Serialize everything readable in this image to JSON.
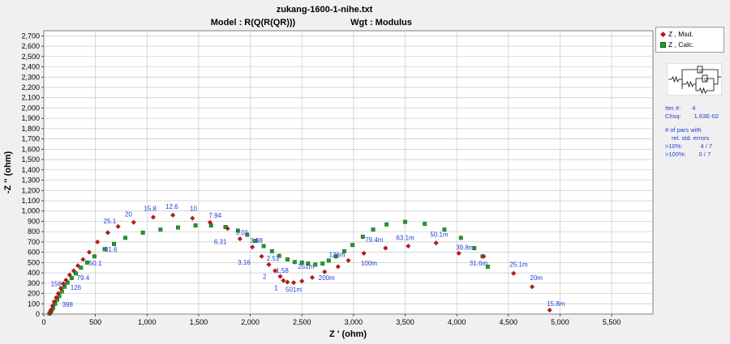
{
  "window": {
    "title": "zukang-1600-1-nihe.txt",
    "model_label": "Model : R(Q(R(QR)))",
    "weight_label": "Wgt : Modulus"
  },
  "legend": {
    "measured": "Z , Msd.",
    "calculated": "Z , Calc."
  },
  "fit_info": {
    "iter_label": "Iter #:",
    "iter_value": "4",
    "chsq_label": "Chsq:",
    "chsq_value": "1.63E-02",
    "pars_line1": "# of pars with",
    "pars_line2": "rel. std. errors",
    "gt10_label": ">10%:",
    "gt10_value": "4 / 7",
    "gt100_label": ">100%:",
    "gt100_value": "0 / 7"
  },
  "colors": {
    "measured": "#c21818",
    "calculated": "#1f9e2e",
    "freq_label": "#1f3fd8",
    "grid": "#c8c8c8"
  },
  "chart_data": {
    "type": "scatter",
    "xlabel": "Z ' (ohm)",
    "ylabel": "-Z '' (ohm)",
    "xlim": [
      0,
      5900
    ],
    "ylim": [
      0,
      2750
    ],
    "xticks": [
      0,
      500,
      1000,
      1500,
      2000,
      2500,
      3000,
      3500,
      4000,
      4500,
      5000,
      5500
    ],
    "yticks": [
      0,
      100,
      200,
      300,
      400,
      500,
      600,
      700,
      800,
      900,
      1000,
      1100,
      1200,
      1300,
      1400,
      1500,
      1600,
      1700,
      1800,
      1900,
      2000,
      2100,
      2200,
      2300,
      2400,
      2500,
      2600,
      2700
    ],
    "grid": true,
    "legend_position": "right",
    "series": [
      {
        "name": "Z , Msd.",
        "marker": "diamond",
        "points": [
          [
            60,
            10
          ],
          [
            70,
            40
          ],
          [
            85,
            80
          ],
          [
            100,
            120
          ],
          [
            120,
            160
          ],
          [
            140,
            200
          ],
          [
            165,
            250
          ],
          [
            190,
            295
          ],
          [
            215,
            330
          ],
          [
            250,
            380
          ],
          [
            290,
            420
          ],
          [
            330,
            470
          ],
          [
            380,
            530
          ],
          [
            440,
            600
          ],
          [
            520,
            700
          ],
          [
            620,
            790
          ],
          [
            720,
            850
          ],
          [
            870,
            890
          ],
          [
            1060,
            940
          ],
          [
            1250,
            960
          ],
          [
            1440,
            930
          ],
          [
            1610,
            890
          ],
          [
            1780,
            830
          ],
          [
            1900,
            730
          ],
          [
            2020,
            650
          ],
          [
            2110,
            560
          ],
          [
            2180,
            480
          ],
          [
            2240,
            420
          ],
          [
            2290,
            365
          ],
          [
            2320,
            325
          ],
          [
            2360,
            310
          ],
          [
            2420,
            305
          ],
          [
            2500,
            320
          ],
          [
            2600,
            355
          ],
          [
            2720,
            410
          ],
          [
            2850,
            460
          ],
          [
            2950,
            520
          ],
          [
            3100,
            590
          ],
          [
            3310,
            640
          ],
          [
            3530,
            660
          ],
          [
            3800,
            690
          ],
          [
            4020,
            590
          ],
          [
            4260,
            560
          ],
          [
            4550,
            395
          ],
          [
            4730,
            265
          ],
          [
            4900,
            38
          ]
        ]
      },
      {
        "name": "Z , Calc.",
        "marker": "square",
        "points": [
          [
            55,
            5
          ],
          [
            65,
            20
          ],
          [
            75,
            35
          ],
          [
            90,
            60
          ],
          [
            110,
            100
          ],
          [
            130,
            140
          ],
          [
            150,
            175
          ],
          [
            175,
            220
          ],
          [
            200,
            265
          ],
          [
            230,
            305
          ],
          [
            270,
            350
          ],
          [
            310,
            395
          ],
          [
            360,
            450
          ],
          [
            420,
            500
          ],
          [
            490,
            560
          ],
          [
            590,
            630
          ],
          [
            680,
            680
          ],
          [
            790,
            740
          ],
          [
            960,
            790
          ],
          [
            1130,
            820
          ],
          [
            1300,
            840
          ],
          [
            1470,
            860
          ],
          [
            1620,
            860
          ],
          [
            1760,
            845
          ],
          [
            1880,
            810
          ],
          [
            1970,
            770
          ],
          [
            2050,
            710
          ],
          [
            2130,
            660
          ],
          [
            2210,
            610
          ],
          [
            2280,
            565
          ],
          [
            2360,
            530
          ],
          [
            2430,
            505
          ],
          [
            2500,
            500
          ],
          [
            2560,
            490
          ],
          [
            2630,
            480
          ],
          [
            2700,
            490
          ],
          [
            2760,
            520
          ],
          [
            2830,
            560
          ],
          [
            2910,
            610
          ],
          [
            2990,
            670
          ],
          [
            3090,
            750
          ],
          [
            3190,
            820
          ],
          [
            3320,
            870
          ],
          [
            3500,
            895
          ],
          [
            3690,
            875
          ],
          [
            3880,
            820
          ],
          [
            4040,
            740
          ],
          [
            4170,
            640
          ],
          [
            4250,
            560
          ],
          [
            4300,
            460
          ]
        ]
      }
    ],
    "frequency_labels": [
      {
        "text": "158",
        "x": 120,
        "y": 270
      },
      {
        "text": "126",
        "x": 310,
        "y": 235
      },
      {
        "text": "398",
        "x": 230,
        "y": 70
      },
      {
        "text": "79.4",
        "x": 380,
        "y": 330
      },
      {
        "text": "50.1",
        "x": 500,
        "y": 470
      },
      {
        "text": "31.6",
        "x": 650,
        "y": 605
      },
      {
        "text": "25.1",
        "x": 640,
        "y": 880
      },
      {
        "text": "20",
        "x": 820,
        "y": 945
      },
      {
        "text": "15.8",
        "x": 1030,
        "y": 1000
      },
      {
        "text": "12.6",
        "x": 1240,
        "y": 1020
      },
      {
        "text": "10",
        "x": 1450,
        "y": 1000
      },
      {
        "text": "7.94",
        "x": 1660,
        "y": 935
      },
      {
        "text": "6.31",
        "x": 1710,
        "y": 680
      },
      {
        "text": "5.01",
        "x": 1920,
        "y": 770
      },
      {
        "text": "3.98",
        "x": 2060,
        "y": 690
      },
      {
        "text": "3.16",
        "x": 1940,
        "y": 480
      },
      {
        "text": "2.51",
        "x": 2220,
        "y": 520
      },
      {
        "text": "2",
        "x": 2140,
        "y": 340
      },
      {
        "text": "1.58",
        "x": 2310,
        "y": 400
      },
      {
        "text": "1",
        "x": 2250,
        "y": 230
      },
      {
        "text": "501m",
        "x": 2420,
        "y": 215
      },
      {
        "text": "251m",
        "x": 2540,
        "y": 440
      },
      {
        "text": "200m",
        "x": 2740,
        "y": 330
      },
      {
        "text": "126m",
        "x": 2840,
        "y": 555
      },
      {
        "text": "100m",
        "x": 3150,
        "y": 470
      },
      {
        "text": "79.4m",
        "x": 3200,
        "y": 700
      },
      {
        "text": "63.1m",
        "x": 3500,
        "y": 720
      },
      {
        "text": "50.1m",
        "x": 3830,
        "y": 750
      },
      {
        "text": "39.8m",
        "x": 4080,
        "y": 625
      },
      {
        "text": "31.6m",
        "x": 4210,
        "y": 470
      },
      {
        "text": "25.1m",
        "x": 4600,
        "y": 460
      },
      {
        "text": "20m",
        "x": 4770,
        "y": 330
      },
      {
        "text": "15.8m",
        "x": 4960,
        "y": 80
      }
    ]
  }
}
